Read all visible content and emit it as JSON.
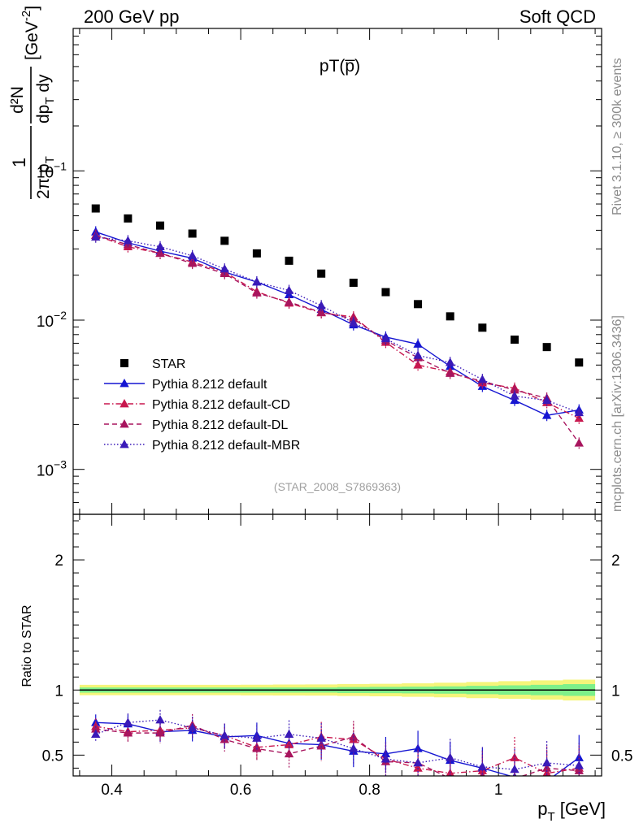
{
  "header": {
    "left": "200 GeV pp",
    "right": "Soft QCD"
  },
  "side_text": {
    "rivet": "Rivet 3.1.10, ≥ 300k events",
    "mcplots": "mcplots.cern.ch [arXiv:1306.3436]"
  },
  "chart_data": [
    {
      "type": "scatter",
      "title": "pT(p̅)",
      "ref": "(STAR_2008_S7869363)",
      "ylabel": {
        "frac_num": "1",
        "frac_den": "2π p",
        "frac_den_sub": "T",
        "deriv_num": "d²N",
        "deriv_den": "dp",
        "deriv_den_sub": "T",
        "deriv_den_tail": " dy",
        "unit": "[GeV",
        "unit_sup": "-2",
        "unit_close": "]"
      },
      "y_scale": "log",
      "xlim": [
        0.34,
        1.16
      ],
      "ylim": [
        0.0005,
        0.9
      ],
      "x_ticks": [
        "0.4",
        "0.6",
        "0.8",
        "1"
      ],
      "y_ticks": [
        {
          "base": "10",
          "exp": "−3"
        },
        {
          "base": "10",
          "exp": "−2"
        },
        {
          "base": "10",
          "exp": "−1"
        }
      ],
      "legend_position": "lower-left",
      "x": [
        0.375,
        0.425,
        0.475,
        0.525,
        0.575,
        0.625,
        0.675,
        0.725,
        0.775,
        0.825,
        0.875,
        0.925,
        0.975,
        1.025,
        1.075,
        1.125
      ],
      "series": [
        {
          "name": "STAR",
          "color": "#000000",
          "marker": "square",
          "line": "none",
          "values": [
            0.056,
            0.048,
            0.043,
            0.038,
            0.034,
            0.028,
            0.025,
            0.0205,
            0.0178,
            0.0154,
            0.0128,
            0.0106,
            0.0089,
            0.0074,
            0.0066,
            0.0052
          ]
        },
        {
          "name": "Pythia 8.212 default",
          "color": "#1515d2",
          "marker": "triangle",
          "line": "solid",
          "values": [
            0.039,
            0.033,
            0.029,
            0.026,
            0.021,
            0.018,
            0.0148,
            0.0118,
            0.0093,
            0.0077,
            0.0069,
            0.0049,
            0.0036,
            0.0029,
            0.0023,
            0.0025
          ]
        },
        {
          "name": "Pythia 8.212 default-CD",
          "color": "#c8174e",
          "marker": "triangle",
          "line": "dashdot",
          "values": [
            0.037,
            0.031,
            0.028,
            0.0245,
            0.021,
            0.0155,
            0.013,
            0.0112,
            0.0105,
            0.0071,
            0.005,
            0.0045,
            0.0038,
            0.0035,
            0.0028,
            0.0022
          ]
        },
        {
          "name": "Pythia 8.212 default-DL",
          "color": "#a8155e",
          "marker": "triangle",
          "line": "dashed",
          "values": [
            0.037,
            0.032,
            0.028,
            0.024,
            0.0205,
            0.0152,
            0.0132,
            0.0113,
            0.0102,
            0.0073,
            0.0056,
            0.0044,
            0.0039,
            0.0034,
            0.003,
            0.0015
          ]
        },
        {
          "name": "Pythia 8.212 default-MBR",
          "color": "#3a1ab8",
          "marker": "triangle",
          "line": "dotted",
          "values": [
            0.036,
            0.034,
            0.031,
            0.027,
            0.022,
            0.018,
            0.0158,
            0.0125,
            0.0096,
            0.0075,
            0.0058,
            0.0052,
            0.004,
            0.0031,
            0.0029,
            0.0024
          ]
        }
      ]
    },
    {
      "type": "scatter",
      "ylabel": "Ratio to STAR",
      "xlabel": "p",
      "xlabel_sub": "T",
      "xlabel_unit": " [GeV]",
      "xlim": [
        0.34,
        1.16
      ],
      "ylim": [
        0.34,
        2.35
      ],
      "y_ticks": [
        "0.5",
        "1",
        "2"
      ],
      "band_inner_halfwidth": [
        0.02,
        0.02,
        0.02,
        0.02,
        0.02,
        0.02,
        0.02,
        0.02,
        0.023,
        0.024,
        0.026,
        0.028,
        0.032,
        0.036,
        0.04,
        0.045
      ],
      "band_outer_halfwidth": [
        0.04,
        0.04,
        0.04,
        0.04,
        0.04,
        0.041,
        0.042,
        0.043,
        0.046,
        0.048,
        0.052,
        0.056,
        0.062,
        0.068,
        0.074,
        0.08
      ],
      "series": [
        {
          "name": "Pythia 8.212 default",
          "values": [
            0.75,
            0.74,
            0.68,
            0.69,
            0.64,
            0.65,
            0.59,
            0.58,
            0.53,
            0.51,
            0.55,
            0.46,
            0.4,
            0.33,
            0.3,
            0.48
          ]
        },
        {
          "name": "Pythia 8.212 default-CD",
          "values": [
            0.72,
            0.68,
            0.69,
            0.71,
            0.65,
            0.56,
            0.58,
            0.64,
            0.62,
            0.47,
            0.4,
            0.36,
            0.38,
            0.48,
            0.36,
            0.4
          ]
        },
        {
          "name": "Pythia 8.212 default-DL",
          "values": [
            0.7,
            0.67,
            0.67,
            0.73,
            0.62,
            0.55,
            0.51,
            0.57,
            0.64,
            0.45,
            0.44,
            0.32,
            0.34,
            0.32,
            0.4,
            0.38
          ]
        },
        {
          "name": "Pythia 8.212 default-MBR",
          "values": [
            0.66,
            0.75,
            0.77,
            0.71,
            0.65,
            0.63,
            0.66,
            0.63,
            0.55,
            0.47,
            0.44,
            0.48,
            0.41,
            0.39,
            0.44,
            0.42
          ]
        }
      ]
    }
  ]
}
